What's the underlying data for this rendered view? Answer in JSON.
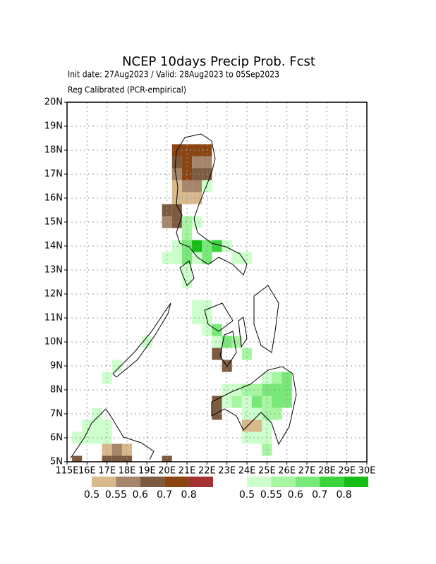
{
  "chart_data": {
    "type": "map",
    "title": "NCEP 10days Precip Prob. Fcst",
    "subtitle": "Init date: 27Aug2023 / Valid: 28Aug2023 to 05Sep2023",
    "subtitle2": "Reg Calibrated (PCR-empirical)",
    "xlim": [
      115,
      130
    ],
    "ylim": [
      5,
      20
    ],
    "xticks": [
      {
        "value": 115,
        "label": "115E"
      },
      {
        "value": 116,
        "label": "16E"
      },
      {
        "value": 117,
        "label": "17E"
      },
      {
        "value": 118,
        "label": "18E"
      },
      {
        "value": 119,
        "label": "19E"
      },
      {
        "value": 120,
        "label": "20E"
      },
      {
        "value": 121,
        "label": "21E"
      },
      {
        "value": 122,
        "label": "22E"
      },
      {
        "value": 123,
        "label": "23E"
      },
      {
        "value": 124,
        "label": "24E"
      },
      {
        "value": 125,
        "label": "25E"
      },
      {
        "value": 126,
        "label": "26E"
      },
      {
        "value": 127,
        "label": "27E"
      },
      {
        "value": 128,
        "label": "28E"
      },
      {
        "value": 129,
        "label": "29E"
      },
      {
        "value": 130,
        "label": "30E"
      }
    ],
    "yticks": [
      {
        "value": 5,
        "label": "5N"
      },
      {
        "value": 6,
        "label": "6N"
      },
      {
        "value": 7,
        "label": "7N"
      },
      {
        "value": 8,
        "label": "8N"
      },
      {
        "value": 9,
        "label": "9N"
      },
      {
        "value": 10,
        "label": "10N"
      },
      {
        "value": 11,
        "label": "11N"
      },
      {
        "value": 12,
        "label": "12N"
      },
      {
        "value": 13,
        "label": "13N"
      },
      {
        "value": 14,
        "label": "14N"
      },
      {
        "value": 15,
        "label": "15N"
      },
      {
        "value": 16,
        "label": "16N"
      },
      {
        "value": 17,
        "label": "17N"
      },
      {
        "value": 18,
        "label": "18N"
      },
      {
        "value": 19,
        "label": "19N"
      },
      {
        "value": 20,
        "label": "20N"
      }
    ],
    "grid": true,
    "colorbars": [
      {
        "colors": [
          "#d8b98c",
          "#a5866a",
          "#7d5b41",
          "#8a4512",
          "#a53232"
        ],
        "ticks": [
          0.5,
          0.55,
          0.6,
          0.7,
          0.8
        ]
      },
      {
        "colors": [
          "#ccffcc",
          "#a6f5a0",
          "#78e878",
          "#3cd23c",
          "#14be14"
        ],
        "ticks": [
          0.5,
          0.55,
          0.6,
          0.7,
          0.8
        ]
      }
    ],
    "cells": [
      {
        "colorbar": 0,
        "lon": [
          120.5,
          121,
          121.5,
          122,
          120.5,
          121,
          121.5,
          122,
          120.5,
          121,
          121.5,
          122,
          120.5,
          121,
          121.5,
          120.5,
          121,
          121.5,
          120,
          120.5,
          120,
          120.5,
          122.5,
          123,
          122.5,
          122.5,
          124,
          124.5,
          117,
          117.5,
          118,
          115.5,
          117,
          117.5,
          118,
          120
        ],
        "lat": [
          18,
          18,
          18,
          18,
          17.5,
          17.5,
          17.5,
          17.5,
          17,
          17,
          17,
          17,
          16.5,
          16.5,
          16.5,
          16,
          16,
          16,
          15.5,
          15.5,
          15,
          15,
          9.5,
          9,
          7.5,
          7,
          6.5,
          6.5,
          5.5,
          5.5,
          5.5,
          5,
          5,
          5,
          5,
          5
        ],
        "values": [
          0.7,
          0.7,
          0.7,
          0.7,
          0.6,
          0.7,
          0.55,
          0.55,
          0.55,
          0.7,
          0.6,
          0.6,
          0.5,
          0.55,
          0.55,
          0.5,
          0.5,
          0.5,
          0.6,
          0.6,
          0.55,
          0.6,
          0.6,
          0.6,
          0.6,
          0.6,
          0.5,
          0.5,
          0.5,
          0.55,
          0.5,
          0.6,
          0.6,
          0.6,
          0.6,
          0.6
        ]
      },
      {
        "colorbar": 1,
        "lon": [
          122,
          121,
          121.5,
          121,
          120.5,
          121,
          121.5,
          122,
          122.5,
          123,
          120,
          120.5,
          121,
          121.5,
          122,
          123.5,
          124,
          121,
          121,
          121.5,
          122,
          121.5,
          122,
          122,
          122.5,
          122.5,
          123,
          123.5,
          119,
          124,
          117.5,
          117,
          125,
          125.5,
          126,
          123,
          123.5,
          124,
          124.5,
          125,
          125.5,
          126,
          123,
          123.5,
          124,
          124.5,
          125,
          125.5,
          126,
          124,
          124.5,
          125,
          125.5,
          125,
          124,
          124.5,
          125,
          125,
          116.5,
          116,
          116.5,
          117,
          115.5,
          116,
          116.5,
          117
        ],
        "lat": [
          16.5,
          15,
          15,
          14.5,
          14,
          14,
          14,
          14,
          14,
          14,
          13.5,
          13.5,
          13.5,
          13.5,
          13.5,
          13.5,
          13.5,
          13,
          12.5,
          11.5,
          11.5,
          11,
          11,
          10.5,
          10.5,
          10,
          10,
          10,
          10,
          9.5,
          9,
          8.5,
          8.5,
          8.5,
          8.5,
          8,
          8,
          8,
          8,
          8,
          8,
          8,
          7.5,
          7.5,
          7.5,
          7.5,
          7.5,
          7.5,
          7.5,
          7,
          7,
          7,
          7,
          6.5,
          6,
          6,
          6,
          5.5,
          7,
          6.5,
          6.5,
          6.5,
          6,
          6,
          6,
          6
        ],
        "values": [
          0.5,
          0.55,
          0.5,
          0.55,
          0.5,
          0.6,
          0.8,
          0.6,
          0.7,
          0.5,
          0.5,
          0.5,
          0.6,
          0.5,
          0.6,
          0.5,
          0.5,
          0.5,
          0.5,
          0.5,
          0.5,
          0.5,
          0.5,
          0.5,
          0.6,
          0.5,
          0.6,
          0.55,
          0.5,
          0.55,
          0.5,
          0.5,
          0.5,
          0.55,
          0.6,
          0.5,
          0.5,
          0.55,
          0.55,
          0.6,
          0.6,
          0.6,
          0.5,
          0.55,
          0.5,
          0.6,
          0.55,
          0.6,
          0.6,
          0.5,
          0.5,
          0.55,
          0.55,
          0.5,
          0.5,
          0.5,
          0.5,
          0.55,
          0.5,
          0.5,
          0.5,
          0.5,
          0.5,
          0.5,
          0.5,
          0.5
        ]
      }
    ]
  }
}
